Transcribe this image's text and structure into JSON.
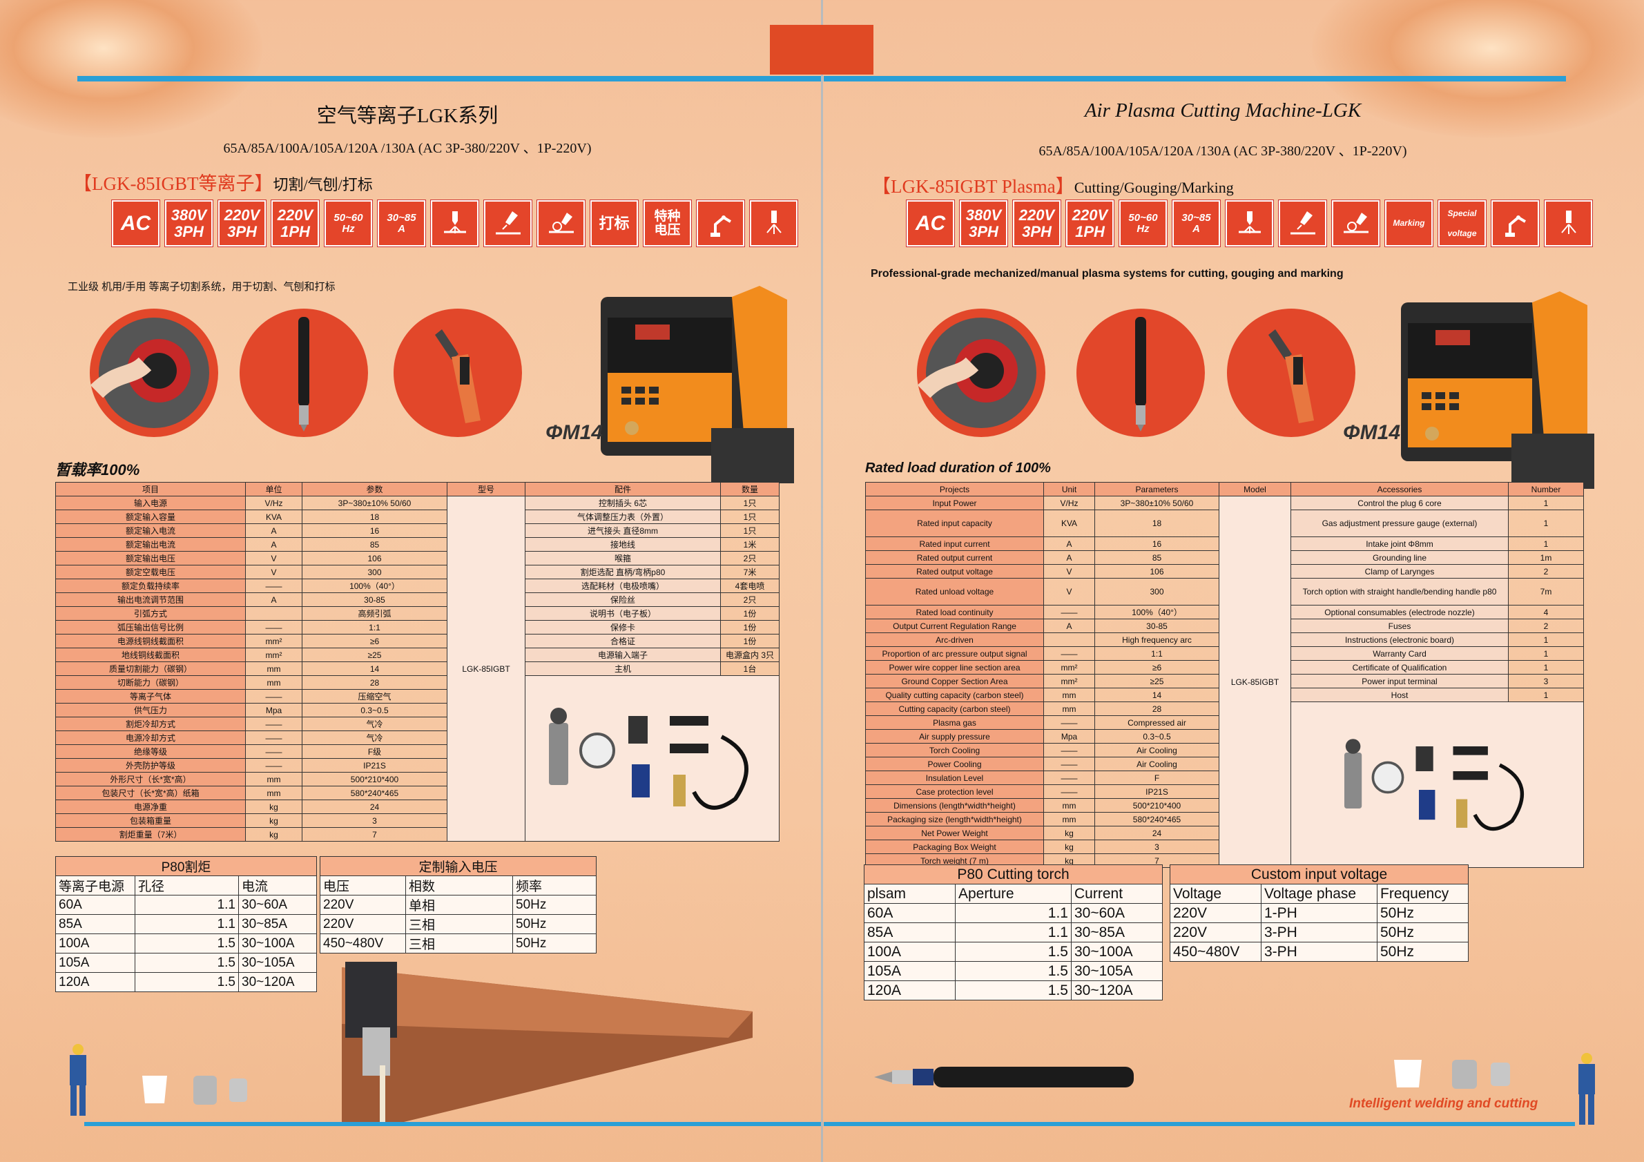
{
  "left": {
    "title": "空气等离子LGK系列",
    "subtitle": "65A/85A/100A/105A/120A /130A (AC 3P-380/220V 、1P-220V)",
    "model_title": "【LGK-85IGBT等离子】",
    "model_suffix": "切割/气刨/打标",
    "badges": [
      "AC",
      "380V",
      "3PH",
      "220V",
      "3PH",
      "220V",
      "1PH",
      "50~60",
      "Hz",
      "30~85",
      "A",
      "打标",
      "特种",
      "电压"
    ],
    "description": "工业级 机用/手用 等离子切割系统，用于切割、气刨和打标",
    "machine_label": "ΦM14",
    "rated": "暂载率100%",
    "spec_headers": [
      "项目",
      "单位",
      "参数",
      "型号",
      "配件",
      "数量"
    ],
    "spec_rows": [
      [
        "输入电源",
        "V/Hz",
        "3P~380±10%   50/60"
      ],
      [
        "额定输入容量",
        "KVA",
        "18"
      ],
      [
        "额定输入电流",
        "A",
        "16"
      ],
      [
        "额定输出电流",
        "A",
        "85"
      ],
      [
        "额定输出电压",
        "V",
        "106"
      ],
      [
        "额定空载电压",
        "V",
        "300"
      ],
      [
        "额定负载持续率",
        "——",
        "100%（40°）"
      ],
      [
        "输出电流调节范围",
        "A",
        "30-85"
      ],
      [
        "引弧方式",
        "",
        "高频引弧"
      ],
      [
        "弧压输出信号比例",
        "——",
        "1:1"
      ],
      [
        "电源线铜线截面积",
        "mm²",
        "≥6"
      ],
      [
        "地线铜线截面积",
        "mm²",
        "≥25"
      ],
      [
        "质量切割能力（碳钢）",
        "mm",
        "14"
      ],
      [
        "切断能力（碳钢）",
        "mm",
        "28"
      ],
      [
        "等离子气体",
        "——",
        "压缩空气"
      ],
      [
        "供气压力",
        "Mpa",
        "0.3~0.5"
      ],
      [
        "割炬冷却方式",
        "——",
        "气冷"
      ],
      [
        "电源冷却方式",
        "——",
        "气冷"
      ],
      [
        "绝缘等级",
        "——",
        "F级"
      ],
      [
        "外壳防护等级",
        "——",
        "IP21S"
      ],
      [
        "外形尺寸（长*宽*高）",
        "mm",
        "500*210*400"
      ],
      [
        "包装尺寸（长*宽*高）纸箱",
        "mm",
        "580*240*465"
      ],
      [
        "电源净重",
        "kg",
        "24"
      ],
      [
        "包装箱重量",
        "kg",
        "3"
      ],
      [
        "割炬重量（7米）",
        "kg",
        "7"
      ]
    ],
    "model_value": "LGK-85IGBT",
    "accessories": [
      [
        "控制插头 6芯",
        "1只"
      ],
      [
        "气体调整压力表（外置）",
        "1只"
      ],
      [
        "进气接头  直径8mm",
        "1只"
      ],
      [
        "接地线",
        "1米"
      ],
      [
        "喉箍",
        "2只"
      ],
      [
        "割炬选配 直柄/弯柄p80",
        "7米"
      ],
      [
        "选配耗材（电极喷嘴）",
        "4套电喷"
      ],
      [
        "保险丝",
        "2只"
      ],
      [
        "说明书（电子板）",
        "1份"
      ],
      [
        "保修卡",
        "1份"
      ],
      [
        "合格证",
        "1份"
      ],
      [
        "电源输入端子",
        "电源盒内 3只"
      ],
      [
        "主机",
        "1台"
      ]
    ],
    "torch_table": {
      "caption": "P80割炬",
      "headers": [
        "等离子电源",
        "孔径",
        "电流"
      ],
      "rows": [
        [
          "60A",
          "1.1",
          "30~60A"
        ],
        [
          "85A",
          "1.1",
          "30~85A"
        ],
        [
          "100A",
          "1.5",
          "30~100A"
        ],
        [
          "105A",
          "1.5",
          "30~105A"
        ],
        [
          "120A",
          "1.5",
          "30~120A"
        ]
      ]
    },
    "voltage_table": {
      "caption": "定制输入电压",
      "headers": [
        "电压",
        "相数",
        "频率"
      ],
      "rows": [
        [
          "220V",
          "单相",
          "50Hz"
        ],
        [
          "220V",
          "三相",
          "50Hz"
        ],
        [
          "450~480V",
          "三相",
          "50Hz"
        ]
      ]
    }
  },
  "right": {
    "title": "Air Plasma Cutting Machine-LGK",
    "subtitle": "65A/85A/100A/105A/120A /130A (AC 3P-380/220V 、1P-220V)",
    "model_title": "【LGK-85IGBT Plasma】",
    "model_suffix": "Cutting/Gouging/Marking",
    "badges": [
      "AC",
      "380V",
      "3PH",
      "220V",
      "3PH",
      "220V",
      "1PH",
      "50~60",
      "Hz",
      "30~85",
      "A",
      "Marking",
      "Special",
      "voltage"
    ],
    "description": "Professional-grade mechanized/manual plasma systems for cutting, gouging and marking",
    "machine_label": "ΦM14",
    "rated": "Rated load duration of 100%",
    "spec_headers": [
      "Projects",
      "Unit",
      "Parameters",
      "Model",
      "Accessories",
      "Number"
    ],
    "spec_rows": [
      [
        "Input Power",
        "V/Hz",
        "3P~380±10%   50/60"
      ],
      [
        "Rated input capacity",
        "KVA",
        "18"
      ],
      [
        "Rated input current",
        "A",
        "16"
      ],
      [
        "Rated output current",
        "A",
        "85"
      ],
      [
        "Rated output voltage",
        "V",
        "106"
      ],
      [
        "Rated unload voltage",
        "V",
        "300"
      ],
      [
        "Rated load continuity",
        "——",
        "100%（40°）"
      ],
      [
        "Output Current Regulation Range",
        "A",
        "30-85"
      ],
      [
        "Arc-driven",
        "",
        "High frequency arc"
      ],
      [
        "Proportion of arc pressure output signal",
        "——",
        "1:1"
      ],
      [
        "Power wire copper line section area",
        "mm²",
        "≥6"
      ],
      [
        "Ground Copper Section Area",
        "mm²",
        "≥25"
      ],
      [
        "Quality cutting capacity (carbon steel)",
        "mm",
        "14"
      ],
      [
        "Cutting capacity (carbon steel)",
        "mm",
        "28"
      ],
      [
        "Plasma gas",
        "——",
        "Compressed air"
      ],
      [
        "Air supply pressure",
        "Mpa",
        "0.3~0.5"
      ],
      [
        "Torch Cooling",
        "——",
        "Air Cooling"
      ],
      [
        "Power Cooling",
        "——",
        "Air Cooling"
      ],
      [
        "Insulation Level",
        "——",
        "F"
      ],
      [
        "Case protection level",
        "——",
        "IP21S"
      ],
      [
        "Dimensions (length*width*height)",
        "mm",
        "500*210*400"
      ],
      [
        "Packaging size (length*width*height)",
        "mm",
        "580*240*465"
      ],
      [
        "Net Power Weight",
        "kg",
        "24"
      ],
      [
        "Packaging Box Weight",
        "kg",
        "3"
      ],
      [
        "Torch weight (7 m)",
        "kg",
        "7"
      ]
    ],
    "model_value": "LGK-85IGBT",
    "accessories": [
      [
        "Control the plug 6 core",
        "1"
      ],
      [
        "Gas adjustment pressure gauge (external)",
        "1"
      ],
      [
        "Intake joint  Φ8mm",
        "1"
      ],
      [
        "Grounding line",
        "1m"
      ],
      [
        "Clamp of Larynges",
        "2"
      ],
      [
        "Torch option with straight handle/bending handle p80",
        "7m"
      ],
      [
        "Optional consumables (electrode nozzle)",
        "4"
      ],
      [
        "Fuses",
        "2"
      ],
      [
        "Instructions (electronic board)",
        "1"
      ],
      [
        "Warranty Card",
        "1"
      ],
      [
        "Certificate of Qualification",
        "1"
      ],
      [
        "Power input terminal",
        "3"
      ],
      [
        "Host",
        "1"
      ]
    ],
    "torch_table": {
      "caption": "P80 Cutting torch",
      "headers": [
        "plsam",
        "Aperture",
        "Current"
      ],
      "rows": [
        [
          "60A",
          "1.1",
          "30~60A"
        ],
        [
          "85A",
          "1.1",
          "30~85A"
        ],
        [
          "100A",
          "1.5",
          "30~100A"
        ],
        [
          "105A",
          "1.5",
          "30~105A"
        ],
        [
          "120A",
          "1.5",
          "30~120A"
        ]
      ]
    },
    "voltage_table": {
      "caption": "Custom input voltage",
      "headers": [
        "Voltage",
        "Voltage phase",
        "Frequency"
      ],
      "rows": [
        [
          "220V",
          "1-PH",
          "50Hz"
        ],
        [
          "220V",
          "3-PH",
          "50Hz"
        ],
        [
          "450~480V",
          "3-PH",
          "50Hz"
        ]
      ]
    },
    "tagline": "Intelligent welding and cutting"
  },
  "colors": {
    "accent_red": "#e04a25",
    "accent_blue": "#2a9fd6",
    "header_fill": "#f3a37f",
    "page_bg": "#f6c6a0"
  }
}
